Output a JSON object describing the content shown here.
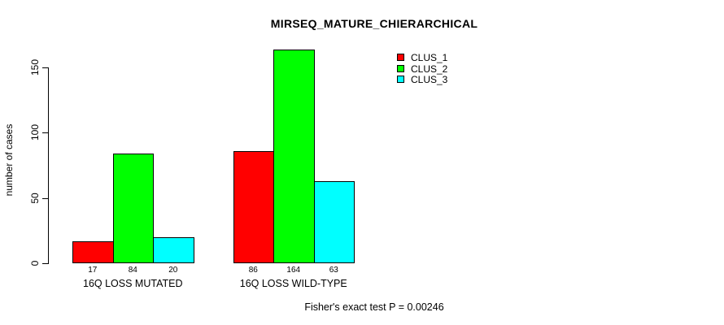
{
  "title": "MIRSEQ_MATURE_CHIERARCHICAL",
  "y_axis_label": "number of cases",
  "footer_note": "Fisher's exact test P = 0.00246",
  "colors": {
    "background": "#FFFFFF",
    "axis": "#000000",
    "clus_1": "#FF0000",
    "clus_2": "#00FF00",
    "clus_3": "#00FFFF"
  },
  "chart_data": {
    "type": "bar",
    "title": "MIRSEQ_MATURE_CHIERARCHICAL",
    "xlabel": "",
    "ylabel": "number of cases",
    "categories": [
      "16Q LOSS MUTATED",
      "16Q LOSS WILD-TYPE"
    ],
    "series": [
      {
        "name": "CLUS_1",
        "color": "#FF0000",
        "values": [
          17,
          86
        ]
      },
      {
        "name": "CLUS_2",
        "color": "#00FF00",
        "values": [
          84,
          164
        ]
      },
      {
        "name": "CLUS_3",
        "color": "#00FFFF",
        "values": [
          20,
          63
        ]
      }
    ],
    "bar_value_labels": [
      [
        17,
        84,
        20
      ],
      [
        86,
        164,
        63
      ]
    ],
    "yticks": [
      0,
      50,
      100,
      150
    ],
    "ylim": [
      0,
      170
    ],
    "grid": false,
    "legend_position": "top-right",
    "legend": [
      "CLUS_1",
      "CLUS_2",
      "CLUS_3"
    ],
    "annotation": "Fisher's exact test P = 0.00246"
  }
}
